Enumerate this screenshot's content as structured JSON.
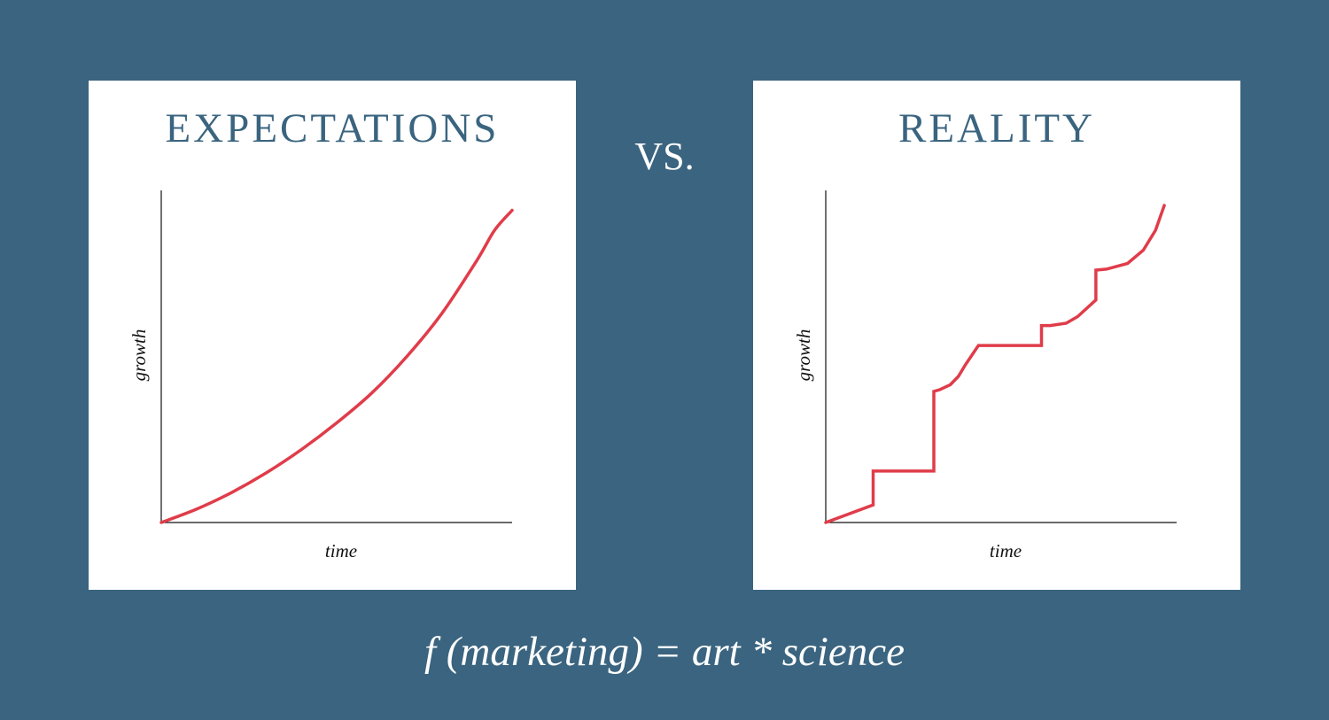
{
  "vs_label": "VS.",
  "formula": "f (marketing) = art * science",
  "colors": {
    "background": "#3a647f",
    "panel": "#ffffff",
    "title": "#3a647f",
    "line": "#e03c4a",
    "axis": "#111111"
  },
  "chart_data": [
    {
      "type": "line",
      "title": "EXPECTATIONS",
      "xlabel": "time",
      "ylabel": "growth",
      "xlim": [
        0,
        100
      ],
      "ylim": [
        0,
        100
      ],
      "grid": false,
      "series": [
        {
          "x": [
            0,
            10,
            20,
            30,
            40,
            50,
            60,
            70,
            80,
            90,
            95,
            100
          ],
          "y": [
            0,
            4,
            9,
            15,
            22,
            30,
            39,
            50,
            63,
            79,
            88,
            94
          ]
        }
      ]
    },
    {
      "type": "line",
      "title": "REALITY",
      "xlabel": "time",
      "ylabel": "growth",
      "xlim": [
        0,
        100
      ],
      "ylim": [
        0,
        100
      ],
      "grid": false,
      "series": [
        {
          "x": [
            0,
            13.5,
            13.5,
            30.8,
            30.8,
            32.5,
            35.5,
            37.8,
            39.8,
            43.5,
            61.5,
            61.5,
            64.0,
            68.5,
            71.8,
            77.0,
            77.0,
            80.0,
            86.0,
            90.5,
            94.0,
            96.5
          ],
          "y": [
            0,
            5.3,
            15.5,
            15.5,
            39.5,
            40.0,
            41.5,
            44.0,
            47.5,
            53.3,
            53.3,
            59.3,
            59.3,
            60.0,
            62.0,
            67.0,
            76.0,
            76.3,
            78.0,
            82.0,
            88.0,
            95.5
          ]
        }
      ]
    }
  ]
}
